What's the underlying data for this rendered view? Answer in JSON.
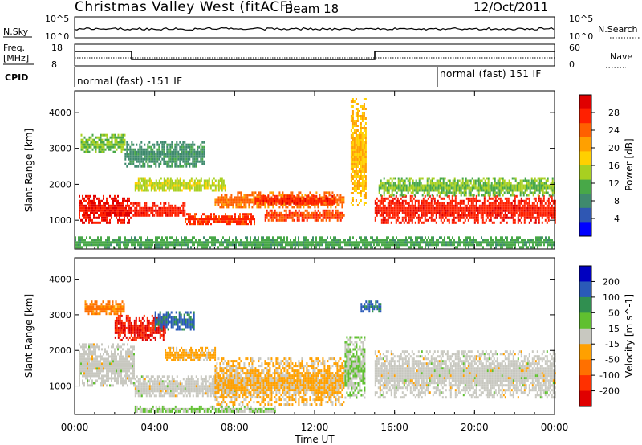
{
  "header": {
    "station": "Christmas Valley West (fitACF)",
    "beam": "Beam 18",
    "date": "12/Oct/2011"
  },
  "noise_panel": {
    "left_label": "N.Sky",
    "right_label": "N.Search",
    "left_ticks": [
      "10^5",
      "10^0"
    ],
    "right_ticks": [
      "10^5",
      "10^0"
    ]
  },
  "freq_panel": {
    "left_label_1": "Freq.",
    "left_label_2": "[MHz]",
    "right_label": "Nave",
    "left_ticks": [
      "18",
      "8"
    ],
    "right_ticks": [
      "60",
      "0"
    ]
  },
  "cpid_panel": {
    "label": "CPID",
    "segments": [
      "normal (fast) -151 IF",
      "normal (fast) 151 IF"
    ]
  },
  "x_axis": {
    "label": "Time UT",
    "ticks": [
      "00:00",
      "04:00",
      "08:00",
      "12:00",
      "16:00",
      "20:00",
      "00:00"
    ]
  },
  "colors": {
    "power_scale": [
      "#0000ff",
      "#2f57b3",
      "#3f8a6e",
      "#48a848",
      "#a8d020",
      "#ffd000",
      "#ffa000",
      "#ff6000",
      "#ff2000",
      "#e00000"
    ],
    "velocity_scale": [
      "#e00000",
      "#ff3000",
      "#ff7000",
      "#ffa000",
      "#c8c8c0",
      "#60c030",
      "#308f50",
      "#2a5ab8",
      "#0000c0"
    ]
  },
  "chart_data": [
    {
      "type": "heatmap",
      "name": "Power",
      "ylabel": "Slant Range [km]",
      "xlabel": "",
      "y_ticks": [
        "1000",
        "2000",
        "3000",
        "4000"
      ],
      "ylim": [
        200,
        4600
      ],
      "xlim_hours": [
        0,
        24
      ],
      "colorbar_label": "Power [dB]",
      "colorbar_ticks": [
        "4",
        "8",
        "12",
        "16",
        "20",
        "24",
        "28"
      ],
      "colorbar_range": [
        0,
        30
      ],
      "bands": [
        {
          "t0": 0.2,
          "t1": 2.8,
          "r0": 900,
          "r1": 1700,
          "value": 27
        },
        {
          "t0": 2.9,
          "t1": 5.5,
          "r0": 1100,
          "r1": 1500,
          "value": 26
        },
        {
          "t0": 3.0,
          "t1": 7.5,
          "r0": 1800,
          "r1": 2200,
          "value": 14
        },
        {
          "t0": 5.5,
          "t1": 9.0,
          "r0": 900,
          "r1": 1200,
          "value": 25
        },
        {
          "t0": 7.0,
          "t1": 13.5,
          "r0": 1350,
          "r1": 1800,
          "value": 22
        },
        {
          "t0": 9.0,
          "t1": 13.0,
          "r0": 1450,
          "r1": 1700,
          "value": 26
        },
        {
          "t0": 9.5,
          "t1": 13.5,
          "r0": 1000,
          "r1": 1300,
          "value": 24
        },
        {
          "t0": 15.0,
          "t1": 24.0,
          "r0": 950,
          "r1": 1700,
          "value": 26
        },
        {
          "t0": 0.3,
          "t1": 2.5,
          "r0": 2900,
          "r1": 3400,
          "value": 12
        },
        {
          "t0": 2.5,
          "t1": 6.5,
          "r0": 2500,
          "r1": 3200,
          "value": 8
        },
        {
          "t0": 13.8,
          "t1": 14.6,
          "r0": 1400,
          "r1": 4400,
          "value": 18
        },
        {
          "t0": 15.2,
          "t1": 24.0,
          "r0": 1700,
          "r1": 2200,
          "value": 12
        },
        {
          "t0": 0.0,
          "t1": 24.0,
          "r0": 250,
          "r1": 550,
          "value": 10
        }
      ]
    },
    {
      "type": "heatmap",
      "name": "Velocity",
      "ylabel": "Slant Range [km]",
      "xlabel": "Time UT",
      "y_ticks": [
        "1000",
        "2000",
        "3000",
        "4000"
      ],
      "ylim": [
        200,
        4600
      ],
      "xlim_hours": [
        0,
        24
      ],
      "colorbar_label": "Velocity [m s^-1]",
      "colorbar_ticks": [
        "200",
        "100",
        "50",
        "15",
        "-15",
        "-50",
        "-100",
        "-200"
      ],
      "colorbar_range": [
        -250,
        250
      ],
      "bands": [
        {
          "t0": 0.2,
          "t1": 3.0,
          "r0": 1000,
          "r1": 2200,
          "value": 0
        },
        {
          "t0": 3.0,
          "t1": 8.0,
          "r0": 700,
          "r1": 1300,
          "value": 0
        },
        {
          "t0": 4.5,
          "t1": 7.0,
          "r0": 1700,
          "r1": 2100,
          "value": -50
        },
        {
          "t0": 7.0,
          "t1": 13.5,
          "r0": 500,
          "r1": 1800,
          "value": -40
        },
        {
          "t0": 13.5,
          "t1": 14.5,
          "r0": 700,
          "r1": 2400,
          "value": 30
        },
        {
          "t0": 15.0,
          "t1": 24.0,
          "r0": 700,
          "r1": 2000,
          "value": 0
        },
        {
          "t0": 2.0,
          "t1": 4.5,
          "r0": 2300,
          "r1": 3000,
          "value": -200
        },
        {
          "t0": 0.5,
          "t1": 2.5,
          "r0": 3000,
          "r1": 3400,
          "value": -100
        },
        {
          "t0": 4.0,
          "t1": 6.0,
          "r0": 2600,
          "r1": 3100,
          "value": 150
        },
        {
          "t0": 14.3,
          "t1": 15.3,
          "r0": 3100,
          "r1": 3400,
          "value": 150
        },
        {
          "t0": 3.0,
          "t1": 10.0,
          "r0": 250,
          "r1": 450,
          "value": 30
        }
      ]
    }
  ]
}
